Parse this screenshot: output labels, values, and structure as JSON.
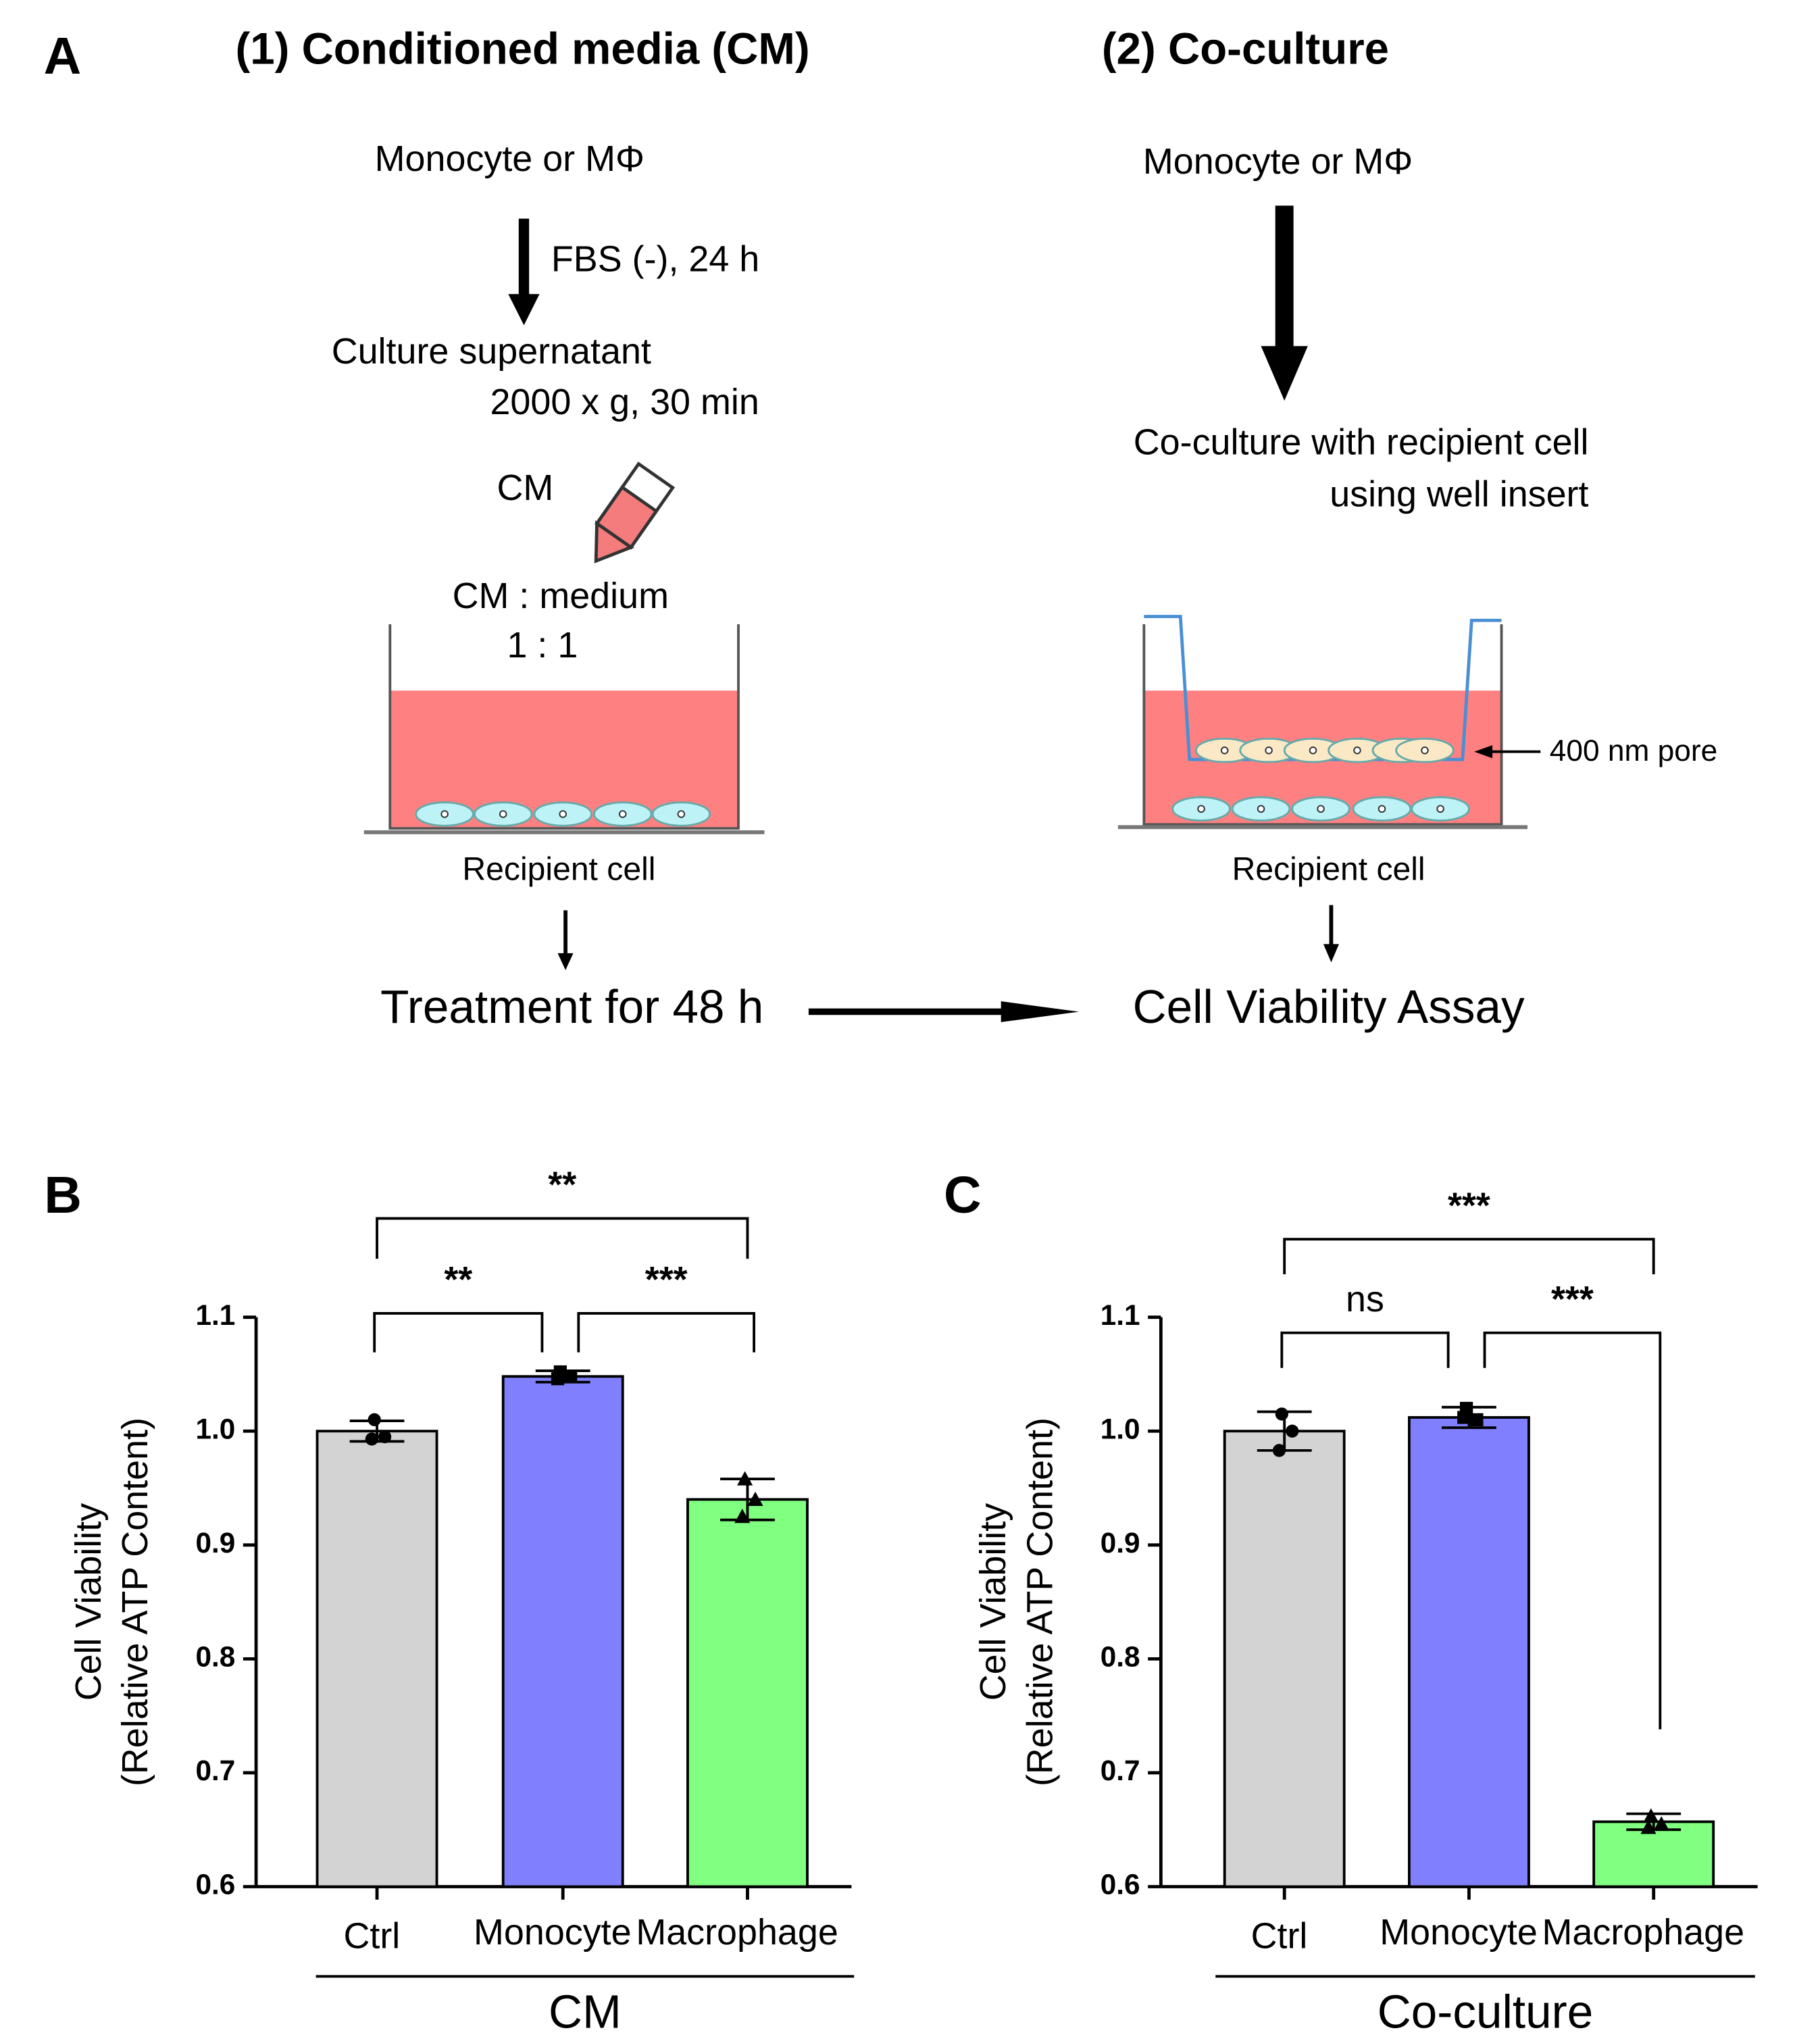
{
  "panel_a": {
    "label": "A",
    "left_title": "(1) Conditioned media (CM)",
    "right_title": "(2) Co-culture",
    "left_source": "Monocyte or MΦ",
    "left_step": "FBS (-), 24 h",
    "supernatant": "Culture supernatant",
    "spin": "2000 x g, 30 min",
    "cm": "CM",
    "ratio_head": "CM  : medium",
    "ratio": "1 : 1",
    "left_cell": "Recipient cell",
    "treatment": "Treatment for 48 h",
    "right_source": "Monocyte or MΦ",
    "coculture_1": "Co-culture with recipient cell",
    "coculture_2": "using well insert",
    "pore": "400 nm pore",
    "right_cell": "Recipient cell",
    "assay": "Cell Viability Assay"
  },
  "chart_data": [
    {
      "type": "bar",
      "panel_label": "B",
      "ylabel": [
        "Cell Viability",
        "(Relative ATP Content)"
      ],
      "group_label": "CM",
      "categories": [
        "Ctrl",
        "Monocyte",
        "Macrophage"
      ],
      "values": [
        1.0,
        1.048,
        0.94
      ],
      "errors": [
        0.009,
        0.005,
        0.018
      ],
      "points": [
        [
          1.01,
          0.995,
          0.993
        ],
        [
          1.052,
          1.048,
          1.046
        ],
        [
          0.958,
          0.94,
          0.925
        ]
      ],
      "colors": [
        "#d3d3d3",
        "#8080ff",
        "#80ff80"
      ],
      "ylim": [
        0.6,
        1.1
      ],
      "yticks": [
        0.6,
        0.7,
        0.8,
        0.9,
        {
          "value": 1,
          "label": "1.0"
        },
        1.1
      ],
      "comparisons": [
        {
          "from": 0,
          "to": 2,
          "label": "**"
        },
        {
          "from": 0,
          "to": 1,
          "label": "**"
        },
        {
          "from": 1,
          "to": 2,
          "label": "***"
        }
      ]
    },
    {
      "type": "bar",
      "panel_label": "C",
      "ylabel": [
        "Cell Viability",
        "(Relative ATP Content)"
      ],
      "group_label": "Co-culture",
      "categories": [
        "Ctrl",
        "Monocyte",
        "Macrophage"
      ],
      "values": [
        1.0,
        1.012,
        0.657
      ],
      "errors": [
        0.017,
        0.009,
        0.007
      ],
      "points": [
        [
          1.015,
          1.0,
          0.983
        ],
        [
          1.02,
          1.01,
          1.012
        ],
        [
          0.662,
          0.655,
          0.652
        ]
      ],
      "colors": [
        "#d3d3d3",
        "#8080ff",
        "#80ff80"
      ],
      "ylim": [
        0.6,
        1.1
      ],
      "yticks": [
        0.6,
        0.7,
        0.8,
        0.9,
        {
          "value": 1,
          "label": "1.0"
        },
        1.1
      ],
      "comparisons": [
        {
          "from": 0,
          "to": 2,
          "label": "***"
        },
        {
          "from": 0,
          "to": 1,
          "label": "ns"
        },
        {
          "from": 1,
          "to": 2,
          "label": "***"
        }
      ]
    }
  ]
}
